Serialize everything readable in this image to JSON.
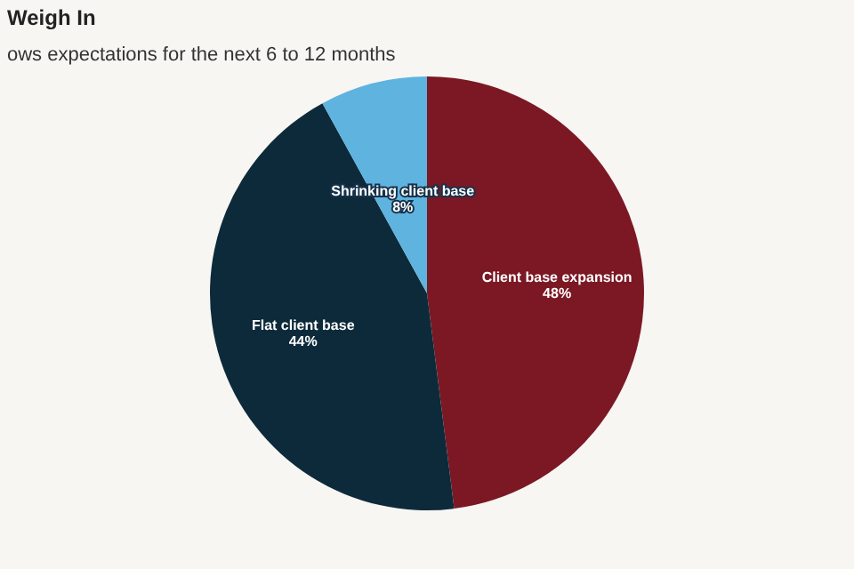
{
  "chart_data": {
    "type": "pie",
    "title": "Weigh In",
    "subtitle": "ows expectations for the next 6 to 12 months",
    "categories": [
      "Client base expansion",
      "Flat client base",
      "Shrinking client base"
    ],
    "values": [
      48,
      44,
      8
    ],
    "colors": [
      "#7b1824",
      "#0d2a3b",
      "#5eb3df"
    ],
    "value_labels": [
      "48%",
      "44%",
      "8%"
    ]
  }
}
